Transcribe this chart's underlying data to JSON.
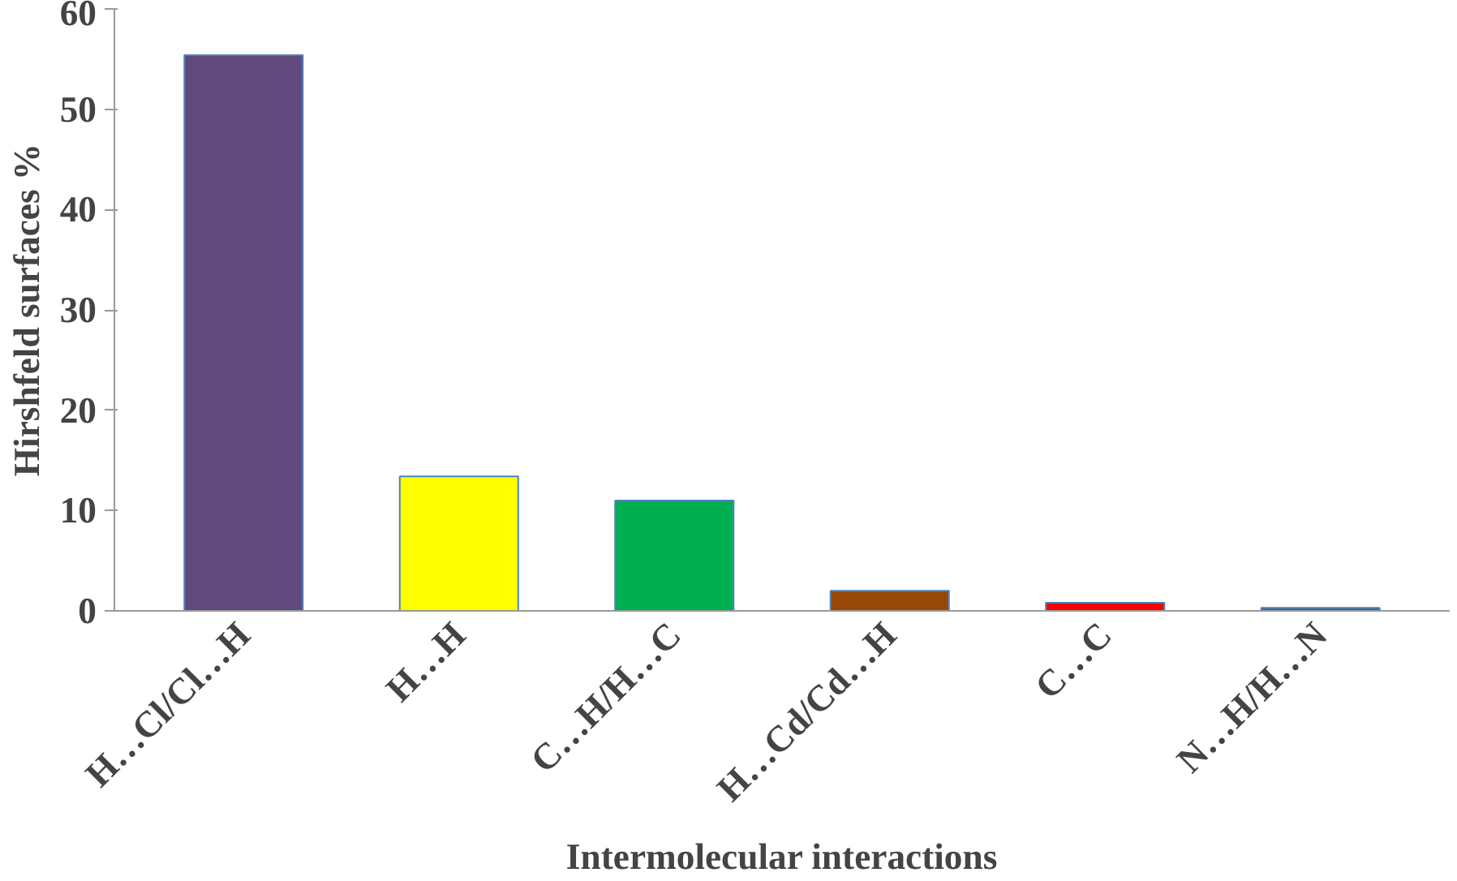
{
  "chart_data": {
    "type": "bar",
    "xlabel": "Intermolecular interactions",
    "ylabel": "Hirshfeld surfaces %",
    "categories": [
      "H…Cl/Cl…H",
      "H…H",
      "C…H/H…C",
      "H…Cd/Cd…H",
      "C…C",
      "N…H/H…N"
    ],
    "values": [
      55.4,
      13.4,
      11,
      2,
      0.8,
      0.3
    ],
    "colors": [
      "#604a7b",
      "#ffff00",
      "#00b050",
      "#974806",
      "#ff0000",
      "#3c6494"
    ],
    "ylim": [
      0,
      60
    ],
    "yticks": [
      0,
      10,
      20,
      30,
      40,
      50,
      60
    ],
    "grid": false
  }
}
